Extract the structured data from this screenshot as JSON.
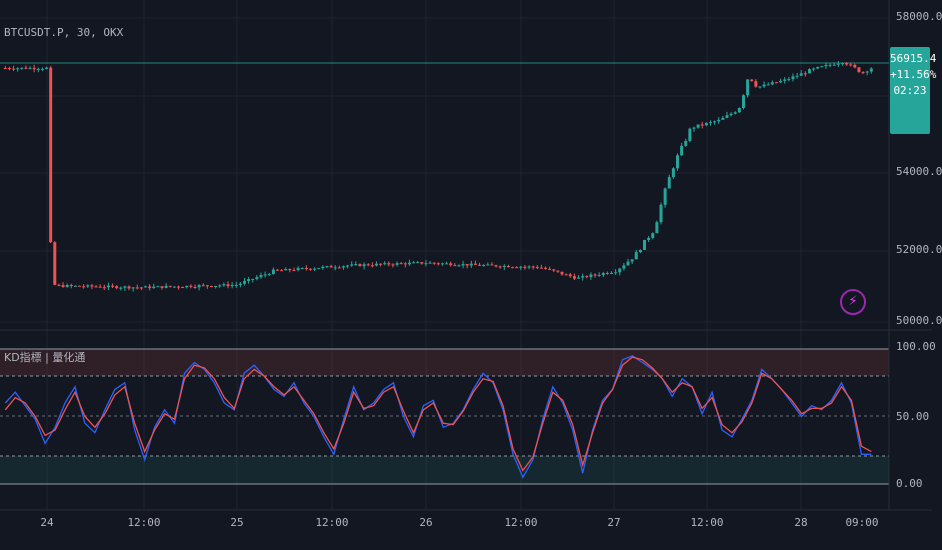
{
  "chart_data": [
    {
      "type": "candlestick",
      "title": "BTCUSDT.P, 30, OKX",
      "last_price_badge": {
        "price": "56915.4",
        "change": "+11.56%",
        "countdown": "02:23"
      },
      "y_ticks": [
        "58000.0",
        "54000.0",
        "52000.0",
        "50000.0"
      ],
      "ylim": [
        49900,
        58500
      ],
      "x_ticks": [
        "24",
        "12:00",
        "25",
        "12:00",
        "26",
        "12:00",
        "27",
        "12:00",
        "28",
        "09:00"
      ],
      "close_path": [
        {
          "d": 0.0,
          "v": 51000
        },
        {
          "d": 0.5,
          "v": 50950
        },
        {
          "d": 1.0,
          "v": 51020
        },
        {
          "d": 1.2,
          "v": 51400
        },
        {
          "d": 1.6,
          "v": 51550
        },
        {
          "d": 2.0,
          "v": 51620
        },
        {
          "d": 2.3,
          "v": 51550
        },
        {
          "d": 2.6,
          "v": 51500
        },
        {
          "d": 2.8,
          "v": 51200
        },
        {
          "d": 3.0,
          "v": 51400
        },
        {
          "d": 3.1,
          "v": 51800
        },
        {
          "d": 3.2,
          "v": 52500
        },
        {
          "d": 3.3,
          "v": 54200
        },
        {
          "d": 3.4,
          "v": 55300
        },
        {
          "d": 3.55,
          "v": 55500
        },
        {
          "d": 3.65,
          "v": 55800
        },
        {
          "d": 3.7,
          "v": 56700
        },
        {
          "d": 3.75,
          "v": 56400
        },
        {
          "d": 3.9,
          "v": 56600
        },
        {
          "d": 4.05,
          "v": 56900
        },
        {
          "d": 4.2,
          "v": 57100
        },
        {
          "d": 4.3,
          "v": 56800
        },
        {
          "d": 4.35,
          "v": 56920
        }
      ],
      "series_colors": {
        "up": "#26a69a",
        "down": "#ef5350"
      },
      "last_price_line": 56915.4
    },
    {
      "type": "line",
      "title": "KD指標 | 量化通",
      "y_ticks": [
        "100.00",
        "50.00",
        "0.00"
      ],
      "ylim": [
        0,
        100
      ],
      "bands": {
        "overbought": 80,
        "oversold": 20
      },
      "series": [
        {
          "color": "#2962ff",
          "values": [
            60,
            68,
            58,
            48,
            30,
            42,
            60,
            72,
            45,
            38,
            55,
            70,
            75,
            40,
            18,
            42,
            55,
            45,
            82,
            90,
            85,
            75,
            60,
            55,
            82,
            88,
            80,
            70,
            65,
            75,
            60,
            50,
            35,
            22,
            48,
            72,
            55,
            60,
            70,
            75,
            50,
            35,
            58,
            62,
            42,
            45,
            55,
            70,
            82,
            75,
            55,
            22,
            5,
            18,
            48,
            72,
            60,
            40,
            8,
            40,
            62,
            70,
            92,
            95,
            90,
            85,
            78,
            65,
            78,
            72,
            52,
            68,
            40,
            35,
            48,
            62,
            85,
            78,
            70,
            60,
            50,
            58,
            55,
            62,
            75,
            60,
            22,
            22
          ]
        },
        {
          "color": "#ef5350",
          "values": [
            55,
            64,
            60,
            50,
            36,
            40,
            55,
            68,
            50,
            42,
            52,
            66,
            72,
            45,
            24,
            40,
            52,
            48,
            78,
            88,
            86,
            78,
            64,
            56,
            78,
            85,
            80,
            72,
            66,
            72,
            62,
            52,
            38,
            26,
            45,
            68,
            56,
            58,
            68,
            72,
            54,
            38,
            55,
            60,
            45,
            44,
            54,
            68,
            78,
            76,
            58,
            26,
            10,
            20,
            45,
            68,
            62,
            44,
            14,
            38,
            60,
            70,
            88,
            94,
            92,
            86,
            78,
            68,
            75,
            72,
            56,
            64,
            44,
            38,
            46,
            60,
            82,
            78,
            70,
            62,
            52,
            56,
            56,
            60,
            72,
            62,
            28,
            24
          ]
        }
      ]
    }
  ]
}
